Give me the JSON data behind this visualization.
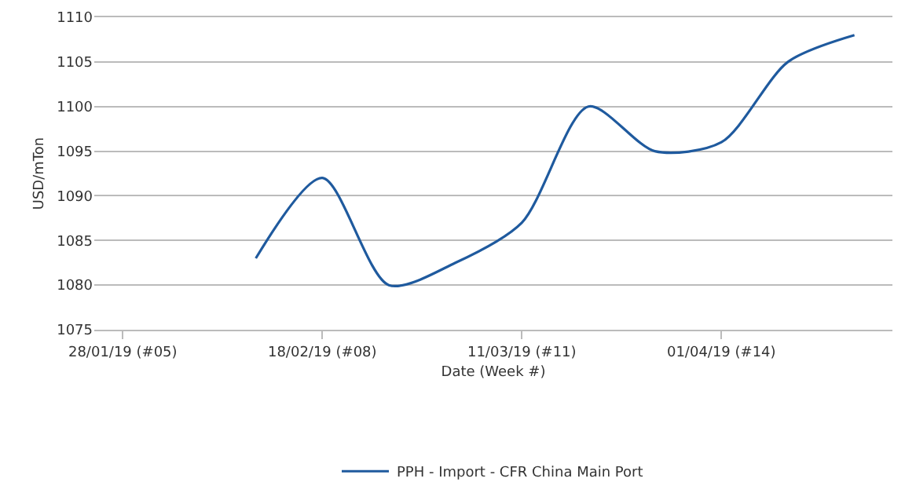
{
  "chart_data": {
    "type": "line",
    "xlabel": "Date (Week #)",
    "ylabel": "USD/mTon",
    "x": [
      "2019-02-11",
      "2019-02-18",
      "2019-02-25",
      "2019-03-04",
      "2019-03-11",
      "2019-03-18",
      "2019-03-25",
      "2019-04-01",
      "2019-04-08",
      "2019-04-15"
    ],
    "series": [
      {
        "name": "PPH - Import - CFR China Main Port",
        "color": "#1f5a9e",
        "values": [
          1083,
          1092,
          1080,
          1082.5,
          1087,
          1100,
          1095,
          1096,
          1105,
          1108
        ]
      }
    ],
    "xlim": [
      "2019-01-25",
      "2019-04-19"
    ],
    "xticks": [
      {
        "value": "2019-01-28",
        "label": "28/01/19 (#05)"
      },
      {
        "value": "2019-02-18",
        "label": "18/02/19 (#08)"
      },
      {
        "value": "2019-03-11",
        "label": "11/03/19 (#11)"
      },
      {
        "value": "2019-04-01",
        "label": "01/04/19 (#14)"
      }
    ],
    "ylim": [
      1075,
      1110
    ],
    "yticks": [
      1075,
      1080,
      1085,
      1090,
      1095,
      1100,
      1105,
      1110
    ],
    "grid": "y",
    "legend": "bottom",
    "line_style": "solid",
    "marker": "none"
  }
}
